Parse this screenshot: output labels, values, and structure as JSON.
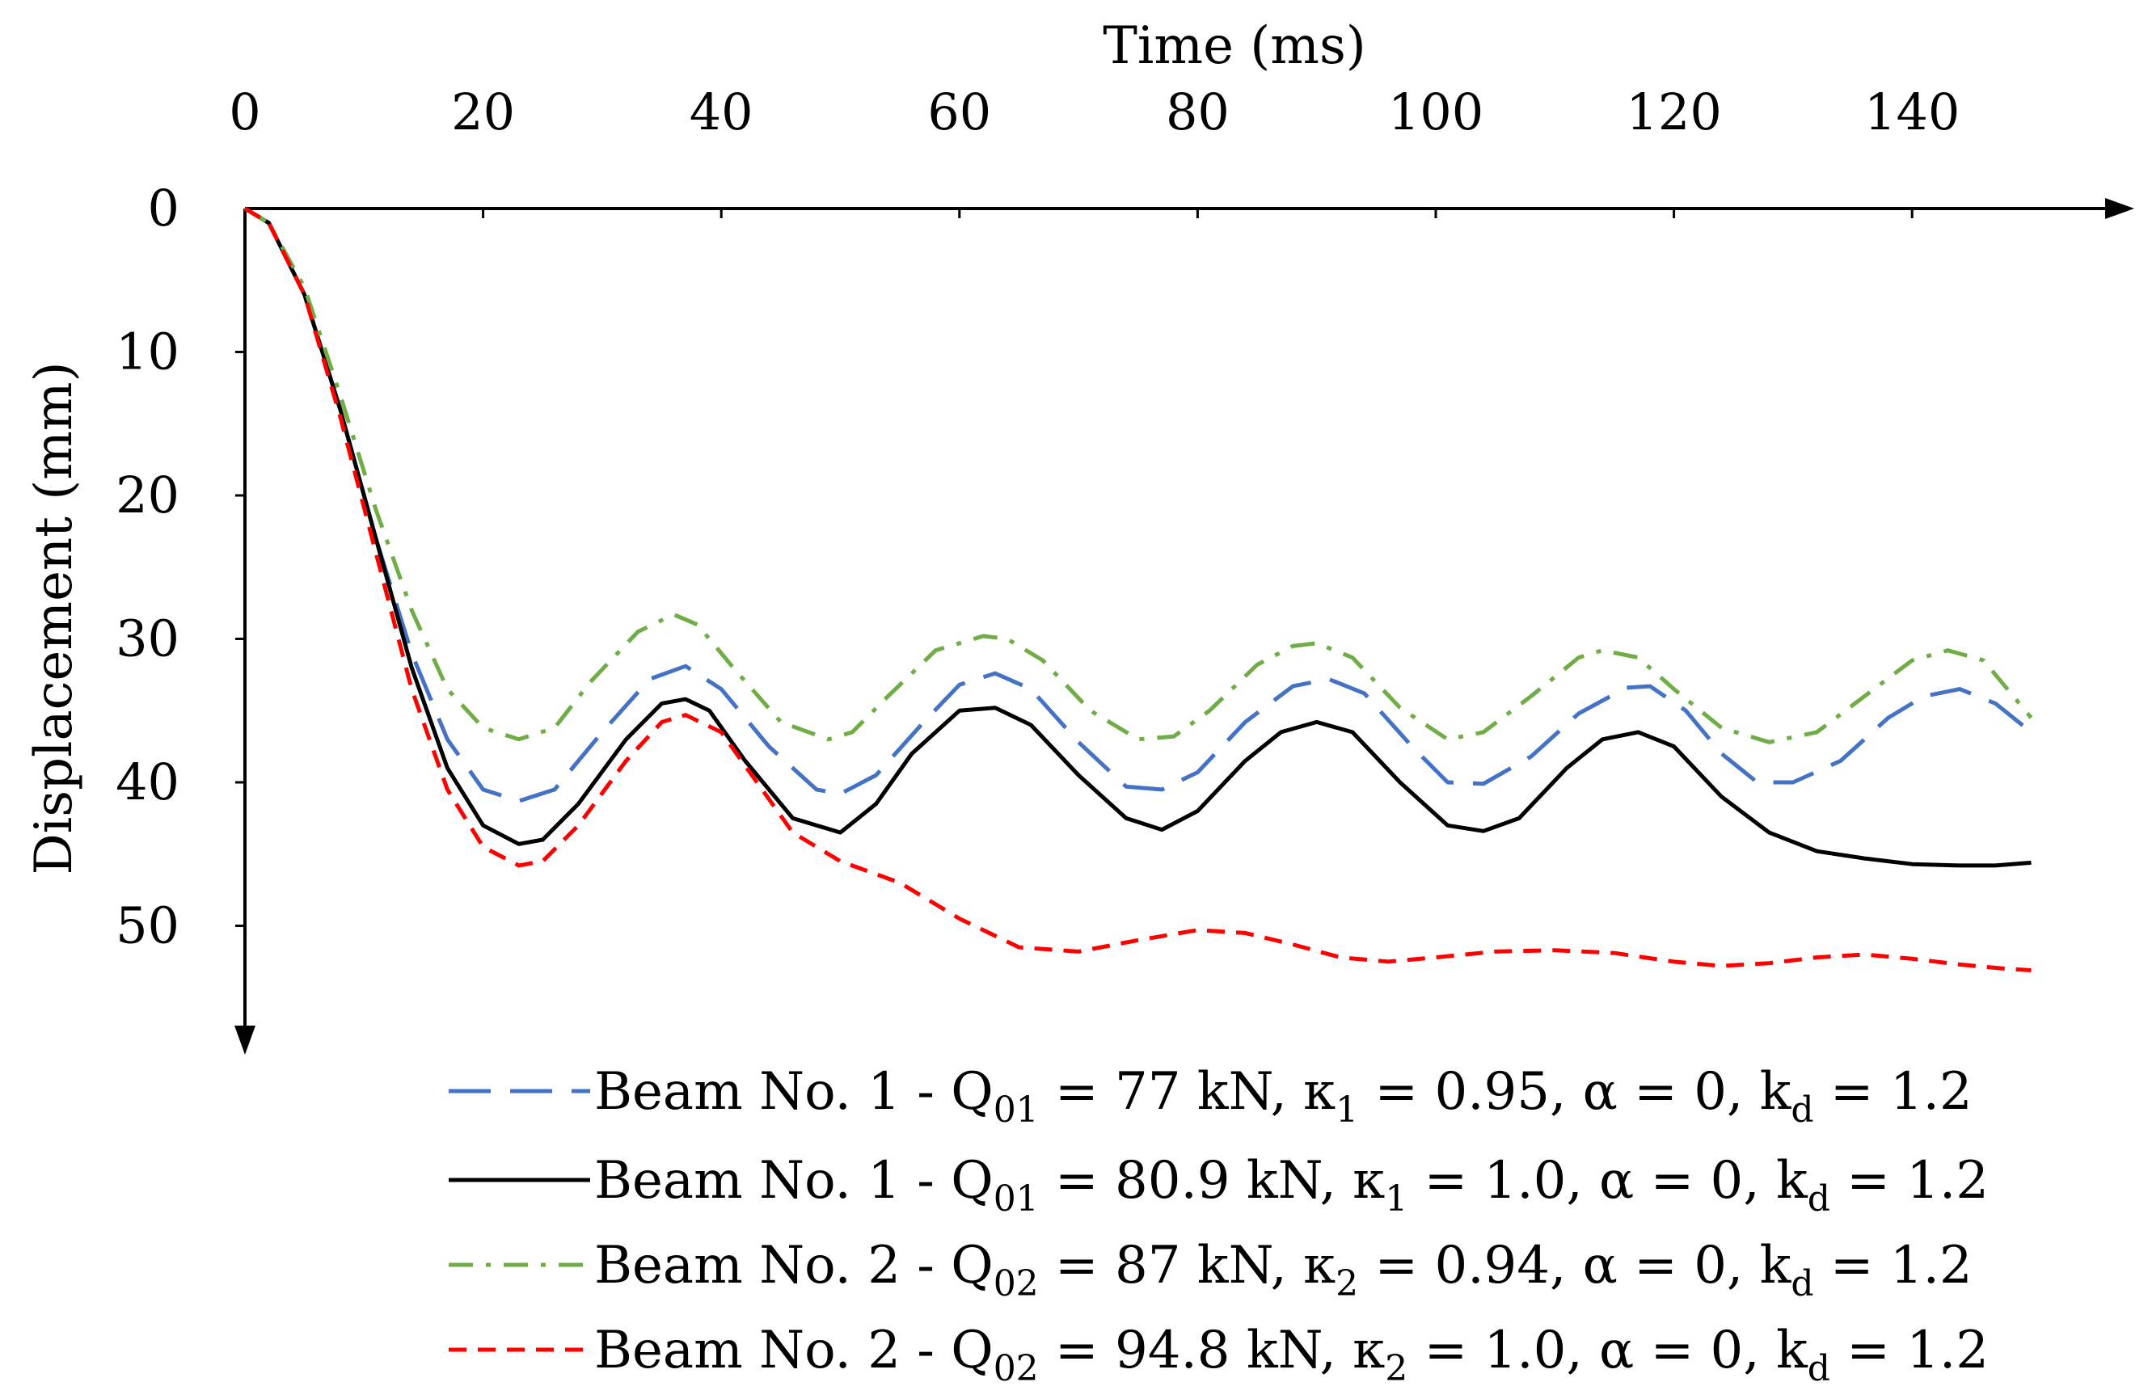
{
  "chart_data": {
    "type": "line",
    "xlabel": "Time (ms)",
    "ylabel": "Displacement (mm)",
    "xlim": [
      0,
      150
    ],
    "ylim": [
      0,
      55
    ],
    "y_axis_direction": "down",
    "x_axis_position": "top",
    "x_ticks": [
      0,
      20,
      40,
      60,
      80,
      100,
      120,
      140
    ],
    "y_ticks": [
      0,
      10,
      20,
      30,
      40,
      50
    ],
    "grid": false,
    "legend_position": "bottom-right",
    "series": [
      {
        "color": "#4472C4",
        "dash": "long-dash",
        "legend": {
          "prefix": "Beam No. 1 - Q",
          "sub1": "01",
          "mid": " = 77 kN, κ",
          "sub2": "1",
          "mid2": " = 0.95, α = 0, k",
          "sub3": "d",
          "suffix": " = 1.2"
        },
        "x": [
          0,
          2,
          5,
          8,
          11,
          14,
          17,
          20,
          23,
          26,
          30,
          34,
          37,
          40,
          44,
          48,
          50,
          53,
          57,
          60,
          63,
          66,
          70,
          74,
          77,
          80,
          84,
          88,
          91,
          94,
          98,
          101,
          104,
          108,
          112,
          116,
          118,
          121,
          124,
          127,
          130,
          134,
          138,
          141,
          144,
          147,
          150
        ],
        "y": [
          0,
          1,
          6,
          14,
          23,
          31,
          37,
          40.5,
          41.3,
          40.5,
          36.5,
          32.8,
          31.9,
          33.5,
          37.5,
          40.5,
          40.8,
          39.5,
          35.8,
          33.2,
          32.4,
          33.5,
          37.2,
          40.3,
          40.5,
          39.3,
          35.8,
          33.3,
          32.8,
          33.8,
          37.5,
          40,
          40.1,
          38.2,
          35.2,
          33.4,
          33.3,
          35,
          38,
          40,
          40,
          38.5,
          35.5,
          34,
          33.5,
          34.5,
          36.5
        ]
      },
      {
        "color": "#000000",
        "dash": "solid",
        "legend": {
          "prefix": "Beam No. 1 - Q",
          "sub1": "01",
          "mid": " = 80.9 kN, κ",
          "sub2": "1",
          "mid2": " = 1.0, α = 0, k",
          "sub3": "d",
          "suffix": " = 1.2"
        },
        "x": [
          0,
          2,
          5,
          8,
          11,
          14,
          17,
          20,
          23,
          25,
          28,
          32,
          35,
          37,
          39,
          42,
          46,
          50,
          53,
          56,
          60,
          63,
          66,
          70,
          74,
          77,
          80,
          84,
          87,
          90,
          93,
          97,
          101,
          104,
          107,
          111,
          114,
          117,
          120,
          124,
          128,
          132,
          136,
          140,
          144,
          147,
          150
        ],
        "y": [
          0,
          1,
          6,
          14,
          23,
          32,
          39,
          43,
          44.3,
          44,
          41.5,
          37,
          34.5,
          34.2,
          35,
          38.5,
          42.5,
          43.5,
          41.5,
          38,
          35,
          34.8,
          36,
          39.5,
          42.5,
          43.3,
          42,
          38.5,
          36.5,
          35.8,
          36.5,
          40,
          43,
          43.4,
          42.5,
          39,
          37,
          36.5,
          37.5,
          41,
          43.5,
          44.8,
          45.3,
          45.7,
          45.8,
          45.8,
          45.6
        ]
      },
      {
        "color": "#70AD47",
        "dash": "dash-dot",
        "legend": {
          "prefix": "Beam No. 2 - Q",
          "sub1": "02",
          "mid": " = 87 kN, κ",
          "sub2": "2",
          "mid2": " = 0.94, α = 0, k",
          "sub3": "d",
          "suffix": " = 1.2"
        },
        "x": [
          0,
          2,
          5,
          8,
          11,
          14,
          17,
          20,
          23,
          26,
          29,
          33,
          36,
          38,
          41,
          45,
          49,
          51,
          54,
          58,
          62,
          64,
          67,
          71,
          75,
          78,
          81,
          85,
          88,
          90,
          93,
          97,
          101,
          104,
          108,
          112,
          114,
          117,
          120,
          124,
          128,
          132,
          136,
          140,
          143,
          146,
          150
        ],
        "y": [
          0,
          1,
          5.5,
          13,
          21,
          28,
          33.5,
          36.2,
          37,
          36.2,
          33,
          29.5,
          28.3,
          29,
          32,
          35.8,
          37,
          36.5,
          34,
          30.8,
          29.8,
          30,
          31.5,
          35,
          37,
          36.8,
          35,
          31.8,
          30.5,
          30.3,
          31.3,
          34.8,
          37,
          36.5,
          34,
          31.3,
          30.8,
          31.3,
          33.5,
          36.2,
          37.2,
          36.5,
          34,
          31.5,
          30.8,
          31.5,
          35.5
        ]
      },
      {
        "color": "#FF0000",
        "dash": "short-dash",
        "legend": {
          "prefix": "Beam No. 2 - Q",
          "sub1": "02",
          "mid": " = 94.8 kN, κ",
          "sub2": "2",
          "mid2": " = 1.0, α = 0, k",
          "sub3": "d",
          "suffix": " = 1.2"
        },
        "x": [
          0,
          2,
          5,
          8,
          11,
          14,
          17,
          20,
          23,
          25,
          28,
          32,
          35,
          37,
          40,
          43,
          46,
          50,
          55,
          60,
          65,
          70,
          75,
          80,
          84,
          88,
          92,
          96,
          100,
          105,
          110,
          115,
          120,
          124,
          128,
          132,
          136,
          140,
          144,
          148,
          150
        ],
        "y": [
          0,
          1,
          6,
          14.5,
          24,
          33.5,
          40.5,
          44.5,
          45.8,
          45.5,
          43,
          38.5,
          35.8,
          35.3,
          36.5,
          40,
          43.5,
          45.5,
          47,
          49.5,
          51.5,
          51.8,
          51,
          50.3,
          50.5,
          51.3,
          52.2,
          52.5,
          52.2,
          51.8,
          51.7,
          51.9,
          52.5,
          52.8,
          52.6,
          52.2,
          52,
          52.3,
          52.7,
          53,
          53.1
        ]
      }
    ]
  }
}
